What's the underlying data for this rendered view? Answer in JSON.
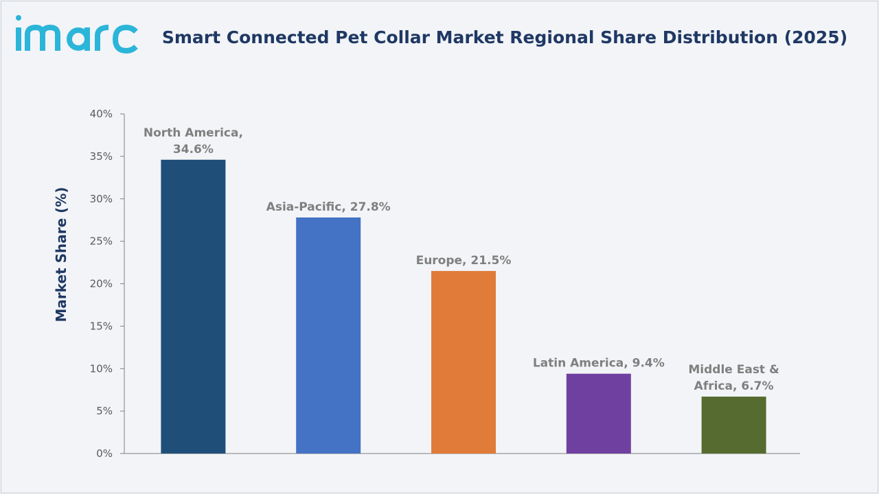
{
  "header": {
    "logo_text": "imarc",
    "title": "Smart Connected Pet Collar Market Regional Share Distribution (2025)"
  },
  "colors": {
    "title": "#1f3864",
    "logo": "#2bb5d9",
    "axis": "#7f7f7f"
  },
  "chart_data": {
    "type": "bar",
    "title": "Smart Connected Pet Collar Market Regional Share Distribution (2025)",
    "xlabel": "",
    "ylabel": "Market Share (%)",
    "ylim": [
      0,
      40
    ],
    "yticks": [
      "0%",
      "5%",
      "10%",
      "15%",
      "20%",
      "25%",
      "30%",
      "35%",
      "40%"
    ],
    "grid": false,
    "legend": "none",
    "categories": [
      "North America",
      "Asia-Pacific",
      "Europe",
      "Latin America",
      "Middle East & Africa"
    ],
    "values": [
      34.6,
      27.8,
      21.5,
      9.4,
      6.7
    ],
    "data_labels": [
      [
        "North America,",
        "34.6%"
      ],
      [
        "Asia-Pacific, 27.8%"
      ],
      [
        "Europe, 21.5%"
      ],
      [
        "Latin America, 9.4%"
      ],
      [
        "Middle East &",
        "Africa, 6.7%"
      ]
    ],
    "bar_colors": [
      "#1f4e79",
      "#4472c4",
      "#e07b39",
      "#7040a0",
      "#556b2f"
    ]
  }
}
